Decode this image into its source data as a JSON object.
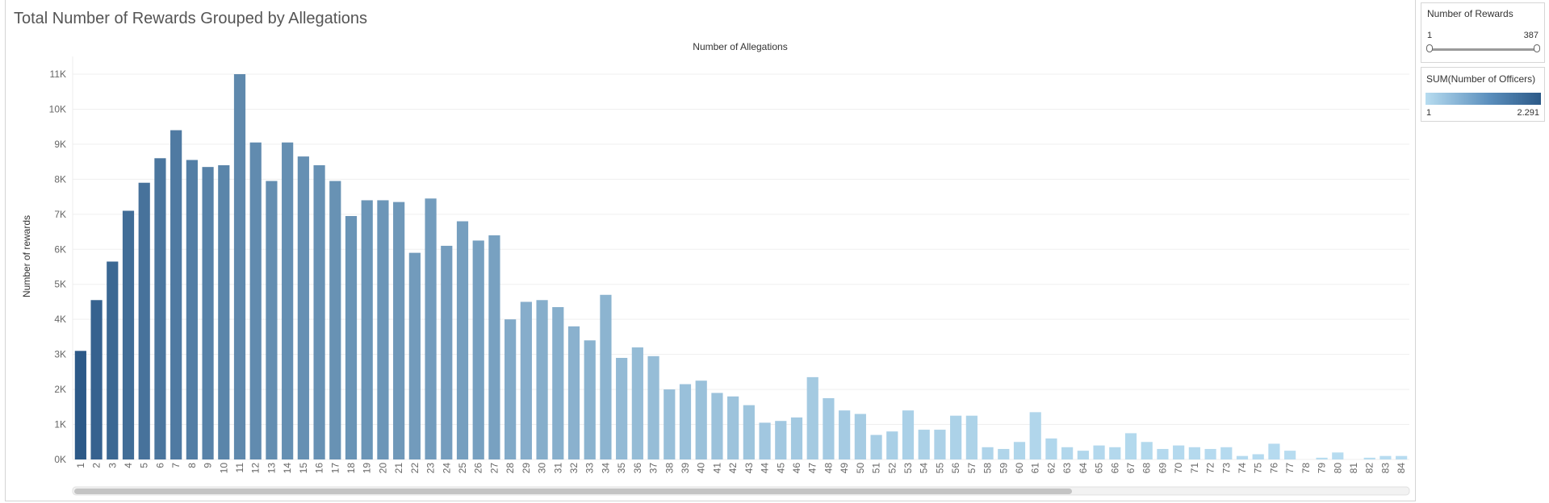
{
  "dashboard": {
    "title": "Total Number of Rewards Grouped by Allegations"
  },
  "filter": {
    "label": "Number of Rewards",
    "min": "1",
    "max": "387"
  },
  "legend": {
    "label": "SUM(Number of Officers)",
    "min": "1",
    "max": "2.291",
    "color_low": "#b7dcf0",
    "color_high": "#2c5987"
  },
  "chart_data": {
    "type": "bar",
    "title": "",
    "xlabel": "Number of Allegations",
    "ylabel": "Number of rewards",
    "ylim": [
      0,
      11000
    ],
    "y_ticks": [
      "0K",
      "1K",
      "2K",
      "3K",
      "4K",
      "5K",
      "6K",
      "7K",
      "8K",
      "9K",
      "10K",
      "11K"
    ],
    "grid": true,
    "bar_color_low": "#b7dcf0",
    "bar_color_high": "#2c5987",
    "categories": [
      "1",
      "2",
      "3",
      "4",
      "5",
      "6",
      "7",
      "8",
      "9",
      "10",
      "11",
      "12",
      "13",
      "14",
      "15",
      "16",
      "17",
      "18",
      "19",
      "20",
      "21",
      "22",
      "23",
      "24",
      "25",
      "26",
      "27",
      "28",
      "29",
      "30",
      "31",
      "32",
      "33",
      "34",
      "35",
      "36",
      "37",
      "38",
      "39",
      "40",
      "41",
      "42",
      "43",
      "44",
      "45",
      "46",
      "47",
      "48",
      "49",
      "50",
      "51",
      "52",
      "53",
      "54",
      "55",
      "56",
      "57",
      "58",
      "59",
      "60",
      "61",
      "62",
      "63",
      "64",
      "65",
      "66",
      "67",
      "68",
      "69",
      "70",
      "71",
      "72",
      "73",
      "74",
      "75",
      "76",
      "77",
      "78",
      "79",
      "80",
      "81",
      "82",
      "83",
      "84"
    ],
    "values": [
      3100,
      4550,
      5650,
      7100,
      7900,
      8600,
      9400,
      8550,
      8350,
      8400,
      11000,
      9050,
      7950,
      9050,
      8650,
      8400,
      7950,
      6950,
      7400,
      7400,
      7350,
      5900,
      7450,
      6100,
      6800,
      6250,
      6400,
      4000,
      4500,
      4550,
      4350,
      3800,
      3400,
      4700,
      2900,
      3200,
      2950,
      2000,
      2150,
      2250,
      1900,
      1800,
      1550,
      1050,
      1100,
      1200,
      2350,
      1750,
      1400,
      1300,
      700,
      800,
      1400,
      850,
      850,
      1250,
      1250,
      350,
      300,
      500,
      1350,
      600,
      350,
      250,
      400,
      350,
      750,
      500,
      300,
      400,
      350,
      300,
      350,
      100,
      150,
      450,
      250,
      0,
      50,
      200,
      0,
      50,
      100,
      100
    ],
    "officers_intensity": [
      2291,
      2000,
      1850,
      1700,
      1550,
      1450,
      1350,
      1250,
      1150,
      1100,
      1000,
      950,
      900,
      880,
      860,
      840,
      820,
      780,
      760,
      740,
      700,
      650,
      620,
      600,
      580,
      560,
      540,
      400,
      350,
      340,
      330,
      300,
      280,
      270,
      200,
      180,
      170,
      150,
      140,
      135,
      120,
      110,
      100,
      80,
      75,
      70,
      65,
      60,
      55,
      50,
      40,
      35,
      30,
      28,
      25,
      22,
      20,
      15,
      12,
      10,
      9,
      8,
      7,
      6,
      5,
      5,
      4,
      4,
      3,
      3,
      3,
      2,
      2,
      2,
      2,
      2,
      1,
      1,
      1,
      1,
      1,
      1,
      1,
      1
    ]
  }
}
